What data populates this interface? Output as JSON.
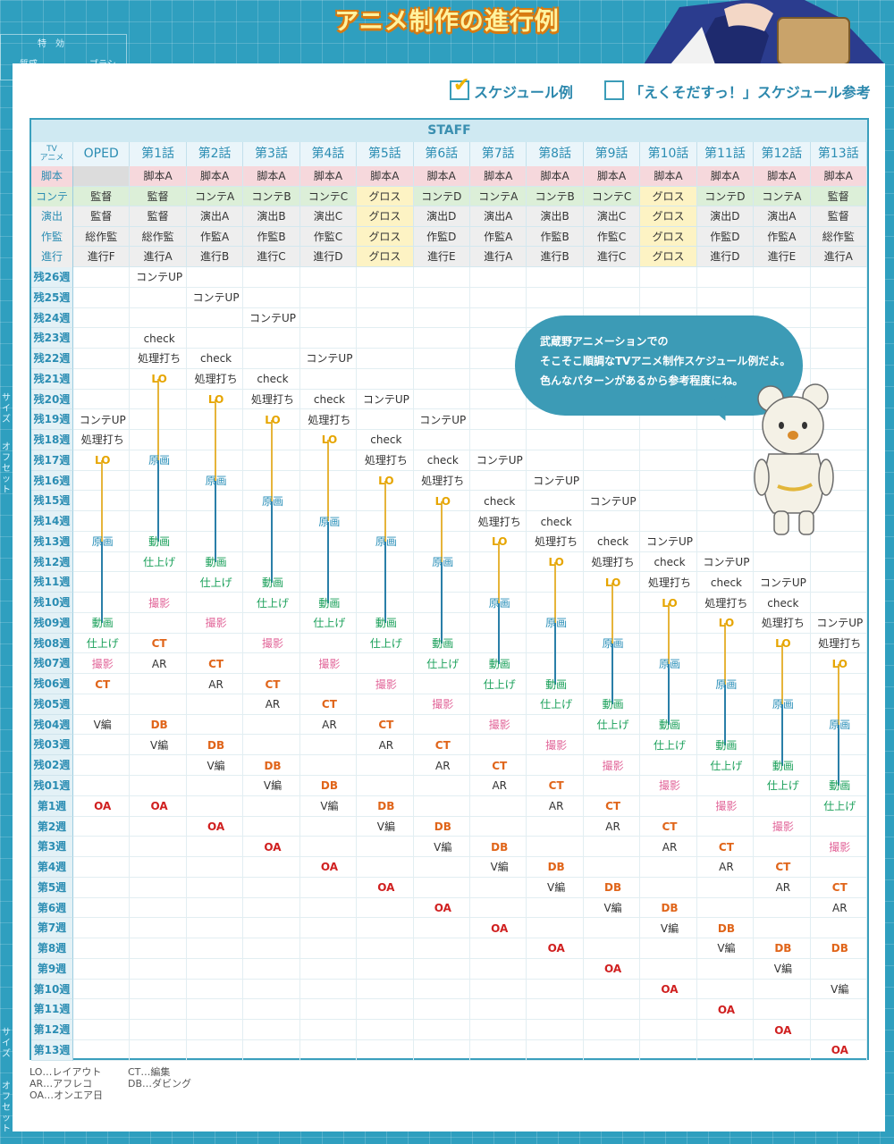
{
  "title": "アニメ制作の進行例",
  "bg_left": {
    "label1": "特　効",
    "label2": "質感",
    "label3": "ブラシ",
    "vlabel1": "サイズ",
    "vlabel2": "オフセット",
    "vlabel3": "サイズ",
    "vlabel4": "オフセット"
  },
  "legend": {
    "item1": "スケジュール例",
    "item2": "「えくそだすっ！」スケジュール参考",
    "item1_checked": true,
    "item2_checked": false
  },
  "chart_data": {
    "type": "table",
    "staff_label": "STAFF",
    "tv_label": "TV\nアニメ",
    "columns": [
      "OPED",
      "第1話",
      "第2話",
      "第3話",
      "第4話",
      "第5話",
      "第6話",
      "第7話",
      "第8話",
      "第9話",
      "第10話",
      "第11話",
      "第12話",
      "第13話"
    ],
    "staff_rows": [
      {
        "label": "脚本",
        "bg": "#f6d8dc",
        "cells": [
          "",
          "脚本A",
          "脚本A",
          "脚本A",
          "脚本A",
          "脚本A",
          "脚本A",
          "脚本A",
          "脚本A",
          "脚本A",
          "脚本A",
          "脚本A",
          "脚本A",
          "脚本A"
        ]
      },
      {
        "label": "コンテ",
        "bg": "#dcefd8",
        "cells": [
          "監督",
          "監督",
          "コンテA",
          "コンテB",
          "コンテC",
          "グロス",
          "コンテD",
          "コンテA",
          "コンテB",
          "コンテC",
          "グロス",
          "コンテD",
          "コンテA",
          "監督"
        ]
      },
      {
        "label": "演出",
        "bg": "#eeeeee",
        "cells": [
          "監督",
          "監督",
          "演出A",
          "演出B",
          "演出C",
          "グロス",
          "演出D",
          "演出A",
          "演出B",
          "演出C",
          "グロス",
          "演出D",
          "演出A",
          "監督"
        ]
      },
      {
        "label": "作監",
        "bg": "#eeeeee",
        "cells": [
          "総作監",
          "総作監",
          "作監A",
          "作監B",
          "作監C",
          "グロス",
          "作監D",
          "作監A",
          "作監B",
          "作監C",
          "グロス",
          "作監D",
          "作監A",
          "総作監"
        ]
      },
      {
        "label": "進行",
        "bg": "#eeeeee",
        "cells": [
          "進行F",
          "進行A",
          "進行B",
          "進行C",
          "進行D",
          "グロス",
          "進行E",
          "進行A",
          "進行B",
          "進行C",
          "グロス",
          "進行D",
          "進行E",
          "進行A"
        ]
      }
    ],
    "gross_color": "#fdf3c4",
    "weeks": [
      "残26週",
      "残25週",
      "残24週",
      "残23週",
      "残22週",
      "残21週",
      "残20週",
      "残19週",
      "残18週",
      "残17週",
      "残16週",
      "残15週",
      "残14週",
      "残13週",
      "残12週",
      "残11週",
      "残10週",
      "残09週",
      "残08週",
      "残07週",
      "残06週",
      "残05週",
      "残04週",
      "残03週",
      "残02週",
      "残01週",
      "第1週",
      "第2週",
      "第3週",
      "第4週",
      "第5週",
      "第6週",
      "第7週",
      "第8週",
      "第9週",
      "第10週",
      "第11週",
      "第12週",
      "第13週"
    ],
    "events": [
      [
        "コンテUP@7",
        "処理打ち@8",
        "LO@9",
        "原画@13",
        "動画@17",
        "仕上げ@18",
        "撮影@19",
        "CT@20",
        "V編@22",
        "OA@26"
      ],
      [
        "コンテUP@0",
        "check@3",
        "処理打ち@4",
        "LO@5",
        "原画@9",
        "動画@13",
        "仕上げ@14",
        "撮影@16",
        "CT@18",
        "AR@19",
        "DB@22",
        "V編@23",
        "OA@26"
      ],
      [
        "コンテUP@1",
        "check@4",
        "処理打ち@5",
        "LO@6",
        "原画@10",
        "動画@14",
        "仕上げ@15",
        "撮影@17",
        "CT@19",
        "AR@20",
        "DB@23",
        "V編@24",
        "OA@27"
      ],
      [
        "コンテUP@2",
        "check@5",
        "処理打ち@6",
        "LO@7",
        "原画@11",
        "動画@15",
        "仕上げ@16",
        "撮影@18",
        "CT@20",
        "AR@21",
        "DB@24",
        "V編@25",
        "OA@28"
      ],
      [
        "コンテUP@4",
        "check@6",
        "処理打ち@7",
        "LO@8",
        "原画@12",
        "動画@16",
        "仕上げ@17",
        "撮影@19",
        "CT@21",
        "AR@22",
        "DB@25",
        "V編@26",
        "OA@29"
      ],
      [
        "コンテUP@6",
        "check@8",
        "処理打ち@9",
        "LO@10",
        "原画@13",
        "動画@17",
        "仕上げ@18",
        "撮影@20",
        "CT@22",
        "AR@23",
        "DB@26",
        "V編@27",
        "OA@30"
      ],
      [
        "コンテUP@7",
        "check@9",
        "処理打ち@10",
        "LO@11",
        "原画@14",
        "動画@18",
        "仕上げ@19",
        "撮影@21",
        "CT@23",
        "AR@24",
        "DB@27",
        "V編@28",
        "OA@31"
      ],
      [
        "コンテUP@9",
        "check@11",
        "処理打ち@12",
        "LO@13",
        "原画@16",
        "動画@19",
        "仕上げ@20",
        "撮影@22",
        "CT@24",
        "AR@25",
        "DB@28",
        "V編@29",
        "OA@32"
      ],
      [
        "コンテUP@10",
        "check@12",
        "処理打ち@13",
        "LO@14",
        "原画@17",
        "動画@20",
        "仕上げ@21",
        "撮影@23",
        "CT@25",
        "AR@26",
        "DB@29",
        "V編@30",
        "OA@33"
      ],
      [
        "コンテUP@11",
        "check@13",
        "処理打ち@14",
        "LO@15",
        "原画@18",
        "動画@21",
        "仕上げ@22",
        "撮影@24",
        "CT@26",
        "AR@27",
        "DB@30",
        "V編@31",
        "OA@34"
      ],
      [
        "コンテUP@13",
        "check@14",
        "処理打ち@15",
        "LO@16",
        "原画@19",
        "動画@22",
        "仕上げ@23",
        "撮影@25",
        "CT@27",
        "AR@28",
        "DB@31",
        "V編@32",
        "OA@35"
      ],
      [
        "コンテUP@14",
        "check@15",
        "処理打ち@16",
        "LO@17",
        "原画@20",
        "動画@23",
        "仕上げ@24",
        "撮影@26",
        "CT@28",
        "AR@29",
        "DB@32",
        "V編@33",
        "OA@36"
      ],
      [
        "コンテUP@15",
        "check@16",
        "処理打ち@17",
        "LO@18",
        "原画@21",
        "動画@24",
        "仕上げ@25",
        "撮影@27",
        "CT@29",
        "AR@30",
        "DB@33",
        "V編@34",
        "OA@37"
      ],
      [
        "コンテUP@17",
        "処理打ち@18",
        "LO@19",
        "原画@22",
        "動画@25",
        "仕上げ@26",
        "撮影@28",
        "CT@30",
        "AR@31",
        "DB@33",
        "V編@35",
        "OA@38"
      ]
    ],
    "event_colors": {
      "LO": "#e6a500",
      "原画": "#2a8fb8",
      "動画": "#1aa05a",
      "仕上げ": "#1aa05a",
      "撮影": "#e2679a",
      "CT": "#e0651a",
      "DB": "#e0651a",
      "OA": "#d02020",
      "default": "#333333"
    },
    "line_colors": {
      "lo_to_genga": "#e6b43a",
      "genga_to_douga": "#2a7fa8"
    }
  },
  "bubble": {
    "line1": "武蔵野アニメーションでの",
    "line2": "そこそこ順調なTVアニメ制作スケジュール例だよ。",
    "line3": "色んなパターンがあるから参考程度にね。"
  },
  "abbreviations": {
    "lo": "LO…レイアウト",
    "ct": "CT…編集",
    "ar": "AR…アフレコ",
    "db": "DB…ダビング",
    "oa": "OA…オンエア日"
  }
}
